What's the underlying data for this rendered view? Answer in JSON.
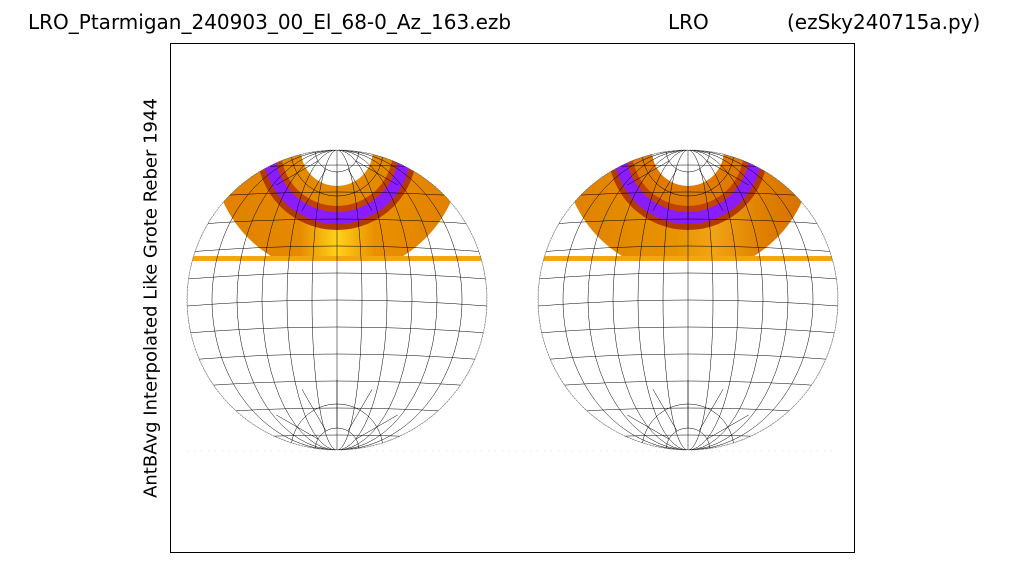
{
  "header": {
    "file": "LRO_Ptarmigan_240903_00_El_68-0_Az_163.ezb",
    "site": "LRO",
    "program": "(ezSky240715a.py)"
  },
  "chart_data": {
    "type": "heatmap",
    "title": "LRO_Ptarmigan_240903_00_El_68-0_Az_163.ezb",
    "ylabel": "AntBAvg Interpolated Like Grote Reber 1944",
    "xlabel": "",
    "grid": true,
    "panels": [
      {
        "name": "left-sky",
        "gradient_shift": 0
      },
      {
        "name": "right-sky",
        "gradient_shift": 1
      }
    ],
    "colors": {
      "band_outer": "#f2a80a",
      "band_main": "#e07f00",
      "band_bright": "#ffd21a",
      "band_dark": "#b23a07",
      "band_purple": "#8a1cff",
      "grid_line": "#000000",
      "grid_dotted": "#888888"
    }
  }
}
